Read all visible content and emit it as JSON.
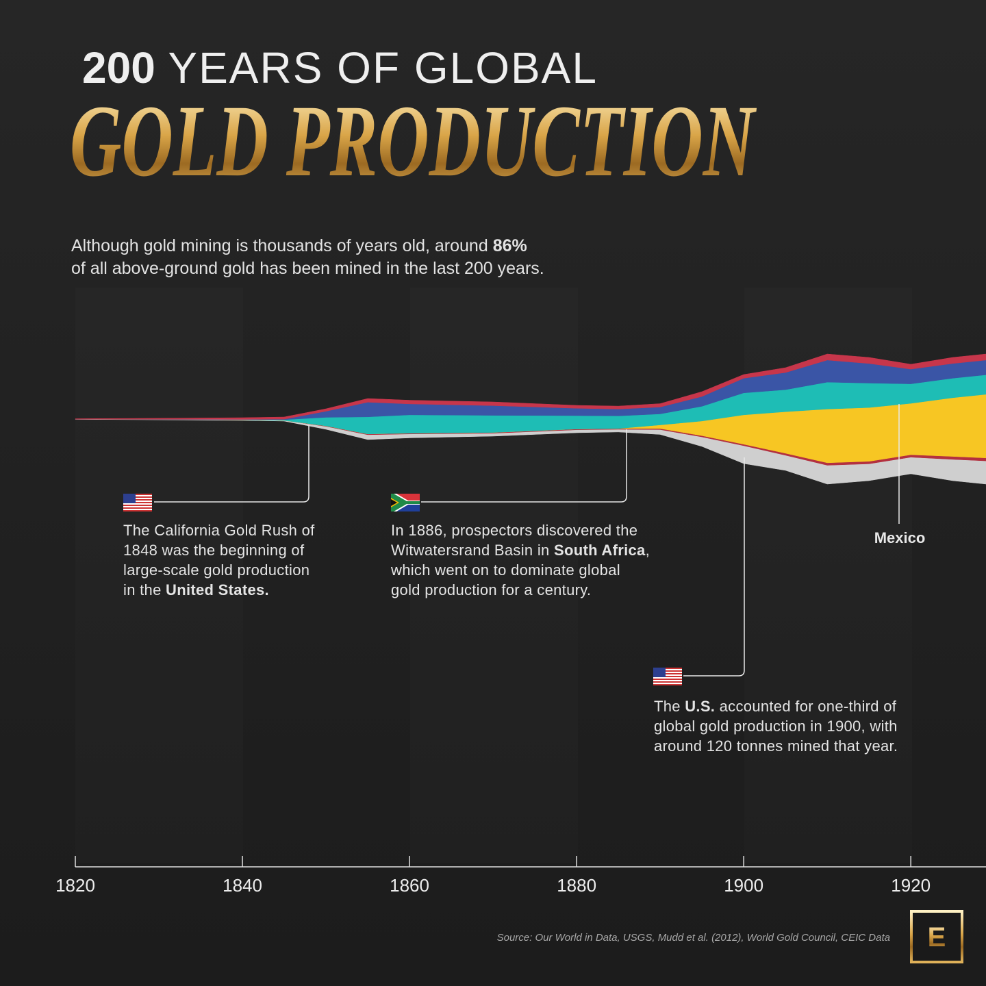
{
  "chart_data": {
    "type": "streamgraph",
    "title": {
      "number": "200",
      "rest": " YEARS OF GLOBAL",
      "main": "GOLD PRODUCTION"
    },
    "subtitle": [
      [
        {
          "text": "Although gold mining is thousands of years old, around "
        },
        {
          "text": "86%",
          "bold": true
        }
      ],
      [
        {
          "text": "of all above-ground gold has been mined in the last 200 years."
        }
      ]
    ],
    "x": [
      1820,
      1830,
      1840,
      1845,
      1850,
      1855,
      1860,
      1870,
      1880,
      1885,
      1890,
      1895,
      1900,
      1905,
      1910,
      1915,
      1920,
      1925,
      1929
    ],
    "xlim": [
      1820,
      1929
    ],
    "xticks": [
      1820,
      1840,
      1860,
      1880,
      1900,
      1920
    ],
    "series": [
      {
        "color": "#cfcfcf",
        "values": [
          1,
          2,
          3,
          3,
          12,
          20,
          16,
          12,
          12,
          11,
          20,
          39,
          73,
          62,
          77,
          69,
          68,
          87,
          95
        ]
      },
      {
        "color": "#b3303f",
        "values": [
          0,
          0,
          0,
          0,
          2,
          3,
          3,
          3,
          3,
          3,
          4,
          5,
          6,
          8,
          10,
          10,
          10,
          12,
          12
        ]
      },
      {
        "color": "#f7c623",
        "values": [
          0,
          0,
          0,
          0,
          0,
          0,
          0,
          0,
          0,
          0,
          15,
          60,
          120,
          170,
          220,
          220,
          210,
          240,
          260
        ]
      },
      {
        "color": "#1ebdb5",
        "values": [
          0,
          0,
          1,
          3,
          35,
          70,
          75,
          70,
          55,
          52,
          45,
          60,
          90,
          90,
          110,
          100,
          80,
          80,
          80
        ]
      },
      {
        "color": "#3a55a6",
        "values": [
          0,
          0,
          0,
          2,
          25,
          60,
          45,
          40,
          30,
          28,
          28,
          40,
          60,
          70,
          90,
          80,
          60,
          60,
          60
        ]
      },
      {
        "color": "#c7364b",
        "values": [
          2,
          4,
          7,
          9,
          10,
          15,
          15,
          15,
          12,
          12,
          14,
          20,
          15,
          20,
          25,
          25,
          20,
          25,
          25
        ]
      }
    ],
    "annotations": [
      {
        "lines": [
          [
            {
              "text": "The California Gold Rush of"
            }
          ],
          [
            {
              "text": "1848 was the beginning of"
            }
          ],
          [
            {
              "text": "large-scale gold production"
            }
          ],
          [
            {
              "text": "in the "
            },
            {
              "text": "United States.",
              "bold": true
            }
          ]
        ]
      },
      {
        "lines": [
          [
            {
              "text": "In 1886, prospectors discovered the"
            }
          ],
          [
            {
              "text": "Witwatersrand Basin in "
            },
            {
              "text": "South Africa",
              "bold": true
            },
            {
              "text": ","
            }
          ],
          [
            {
              "text": "which went on to dominate global"
            }
          ],
          [
            {
              "text": "gold production for a century."
            }
          ]
        ]
      },
      {
        "lines": [
          [
            {
              "text": "The "
            },
            {
              "text": "U.S.",
              "bold": true
            },
            {
              "text": " accounted for one-third of"
            }
          ],
          [
            {
              "text": "global gold production in 1900, with"
            }
          ],
          [
            {
              "text": "around 120 tonnes mined that year."
            }
          ]
        ]
      }
    ],
    "series_label": "Mexico",
    "source": "Source: Our World in Data, USGS, Mudd et al. (2012), World Gold Council, CEIC Data",
    "logo": "E"
  }
}
